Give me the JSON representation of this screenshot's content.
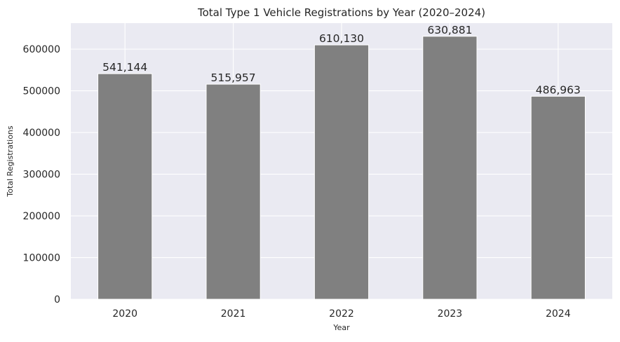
{
  "chart_data": {
    "type": "bar",
    "title": "Total Type 1 Vehicle Registrations by Year (2020–2024)",
    "xlabel": "Year",
    "ylabel": "Total Registrations",
    "categories": [
      "2020",
      "2021",
      "2022",
      "2023",
      "2024"
    ],
    "values": [
      541144,
      515957,
      610130,
      630881,
      486963
    ],
    "data_labels": [
      "541,144",
      "515,957",
      "610,130",
      "630,881",
      "486,963"
    ],
    "ylim": [
      0,
      662425
    ],
    "yticks": [
      0,
      100000,
      200000,
      300000,
      400000,
      500000,
      600000
    ],
    "ytick_labels": [
      "0",
      "100000",
      "200000",
      "300000",
      "400000",
      "500000",
      "600000"
    ],
    "grid": true,
    "colors": {
      "bar": "#808080",
      "plot_background": "#EAEAF2",
      "grid": "#FFFFFF",
      "text": "#262626"
    }
  }
}
